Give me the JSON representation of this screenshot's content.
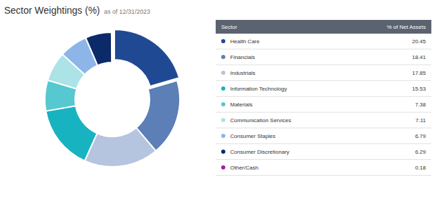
{
  "chart_data": {
    "type": "pie",
    "title": "Sector Weightings (%)",
    "subtitle": "as of 12/31/2023",
    "column_headers": [
      "Sector",
      "% of Net Assets"
    ],
    "categories": [
      "Health Care",
      "Financials",
      "Industrials",
      "Information Technology",
      "Materials",
      "Communication Services",
      "Consumer Staples",
      "Consumer Discretionary",
      "Other/Cash"
    ],
    "values": [
      20.45,
      18.41,
      17.85,
      15.53,
      7.38,
      7.11,
      6.79,
      6.29,
      0.18
    ],
    "colors": [
      "#1f4a93",
      "#5b7fb6",
      "#b5c4df",
      "#17b3c1",
      "#56c8cf",
      "#abe3e6",
      "#8db5e8",
      "#0c2a6a",
      "#a020a0"
    ]
  }
}
